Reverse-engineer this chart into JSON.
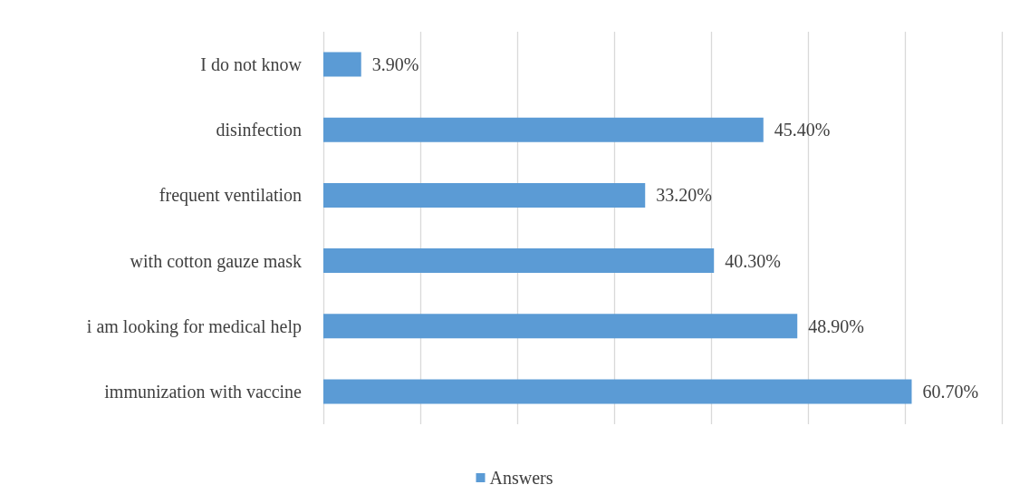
{
  "chart_data": {
    "type": "bar",
    "orientation": "horizontal",
    "categories": [
      "I do not know",
      "disinfection",
      "frequent ventilation",
      "with cotton gauze mask",
      "i am looking for medical help",
      "immunization with vaccine"
    ],
    "series": [
      {
        "name": "Answers",
        "color": "#5b9bd5",
        "values": [
          3.9,
          45.4,
          33.2,
          40.3,
          48.9,
          60.7
        ],
        "value_labels": [
          "3.90%",
          "45.40%",
          "33.20%",
          "40.30%",
          "48.90%",
          "60.70%"
        ]
      }
    ],
    "xlim": [
      0,
      70
    ],
    "xticks": [
      {
        "value": 0,
        "label": null
      },
      {
        "value": 10,
        "label": null
      },
      {
        "value": 20,
        "label": null
      },
      {
        "value": 30,
        "label": null
      },
      {
        "value": 40,
        "label": null
      },
      {
        "value": 50,
        "label": null
      },
      {
        "value": 60,
        "label": null
      },
      {
        "value": 70,
        "label": null
      }
    ],
    "tick_labels": "y",
    "grid": "x",
    "legend": "bottom"
  }
}
